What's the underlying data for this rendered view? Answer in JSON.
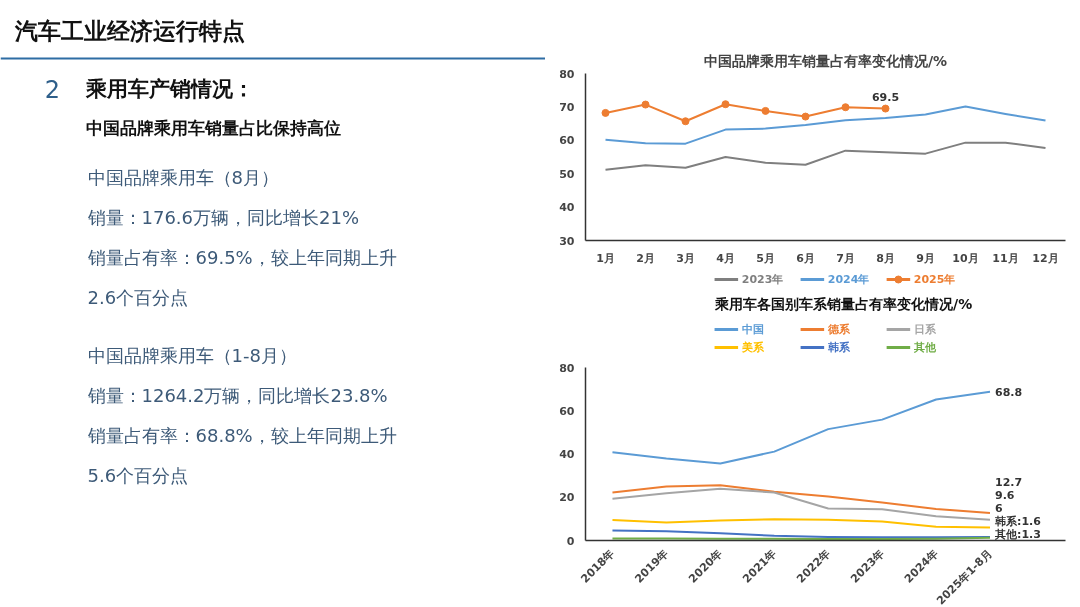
{
  "chart_data": [
    {
      "type": "other",
      "title": "汽车工业经济运行特点",
      "annotations": [
        "2",
        "乘用车产销情况：",
        "中国品牌乘用车销量占比保持高位",
        "中国品牌乘用车（8月）",
        "销量：176.6万辆，同比增长21%",
        "销量占有率：69.5%，较上年同期上升2.6个百分点",
        "中国品牌乘用车（1-8月）",
        "销量：1264.2万辆，同比增长23.8%",
        "销量占有率：68.8%，较上年同期上升5.6个百分点"
      ]
    },
    {
      "type": "line",
      "title": "中国品牌乘用车销量占有率变化情况/%",
      "categories": [
        "1月",
        "2月",
        "3月",
        "4月",
        "5月",
        "6月",
        "7月",
        "8月",
        "9月",
        "10月",
        "11月",
        "12月"
      ],
      "ylim": [
        30,
        80
      ],
      "yticks": [
        30,
        40,
        50,
        60,
        70,
        80
      ],
      "grid": false,
      "legend": "bottom",
      "series": [
        {
          "name": "2023年",
          "color": "#7f7f7f",
          "values": [
            51.2,
            52.5,
            51.8,
            55.0,
            53.3,
            52.7,
            56.9,
            56.4,
            56.0,
            59.3,
            59.3,
            57.7
          ]
        },
        {
          "name": "2024年",
          "color": "#5b9bd5",
          "values": [
            60.2,
            59.1,
            59.0,
            63.2,
            63.5,
            64.6,
            66.0,
            66.7,
            67.7,
            70.1,
            67.9,
            65.9
          ]
        },
        {
          "name": "2025年",
          "color": "#ed7d31",
          "marker": "circle",
          "values": [
            68.2,
            70.7,
            65.7,
            70.8,
            68.8,
            67.1,
            69.9,
            69.5,
            null,
            null,
            null,
            null
          ],
          "value_labels": [
            null,
            null,
            null,
            null,
            null,
            null,
            null,
            "69.5",
            null,
            null,
            null,
            null
          ]
        }
      ]
    },
    {
      "type": "line",
      "title": "乘用车各国别车系销量占有率变化情况/%",
      "categories": [
        "2018年",
        "2019年",
        "2020年",
        "2021年",
        "2022年",
        "2023年",
        "2024年",
        "2025年1-8月"
      ],
      "ylim": [
        0,
        80
      ],
      "yticks": [
        0,
        20,
        40,
        60,
        80
      ],
      "grid": false,
      "legend": "top",
      "series": [
        {
          "name": "中国",
          "color": "#5b9bd5",
          "values": [
            40.8,
            37.9,
            35.6,
            41.1,
            51.5,
            55.9,
            65.2,
            68.8
          ],
          "value_labels": [
            null,
            null,
            null,
            null,
            null,
            null,
            null,
            "68.8"
          ]
        },
        {
          "name": "德系",
          "color": "#ed7d31",
          "values": [
            22.2,
            25.0,
            25.5,
            22.5,
            20.3,
            17.6,
            14.6,
            12.7
          ],
          "value_labels": [
            null,
            null,
            null,
            null,
            null,
            null,
            null,
            "12.7"
          ]
        },
        {
          "name": "日系",
          "color": "#a5a5a5",
          "values": [
            19.3,
            21.9,
            23.9,
            22.2,
            14.8,
            14.5,
            11.2,
            9.6
          ],
          "value_labels": [
            null,
            null,
            null,
            null,
            null,
            null,
            null,
            "9.6"
          ]
        },
        {
          "name": "美系",
          "color": "#ffc000",
          "values": [
            9.5,
            8.3,
            9.3,
            9.8,
            9.6,
            8.8,
            6.4,
            6
          ],
          "value_labels": [
            null,
            null,
            null,
            null,
            null,
            null,
            null,
            "6"
          ]
        },
        {
          "name": "韩系",
          "color": "#4472c4",
          "values": [
            4.6,
            4.3,
            3.4,
            2.2,
            1.6,
            1.5,
            1.5,
            1.6
          ],
          "value_labels": [
            null,
            null,
            null,
            null,
            null,
            null,
            null,
            "韩系:1.6"
          ]
        },
        {
          "name": "其他",
          "color": "#70ad47",
          "values": [
            0.9,
            0.9,
            0.8,
            0.8,
            0.7,
            0.7,
            0.8,
            1.3
          ],
          "value_labels": [
            null,
            null,
            null,
            null,
            null,
            null,
            null,
            "其他:1.3"
          ]
        }
      ]
    }
  ]
}
